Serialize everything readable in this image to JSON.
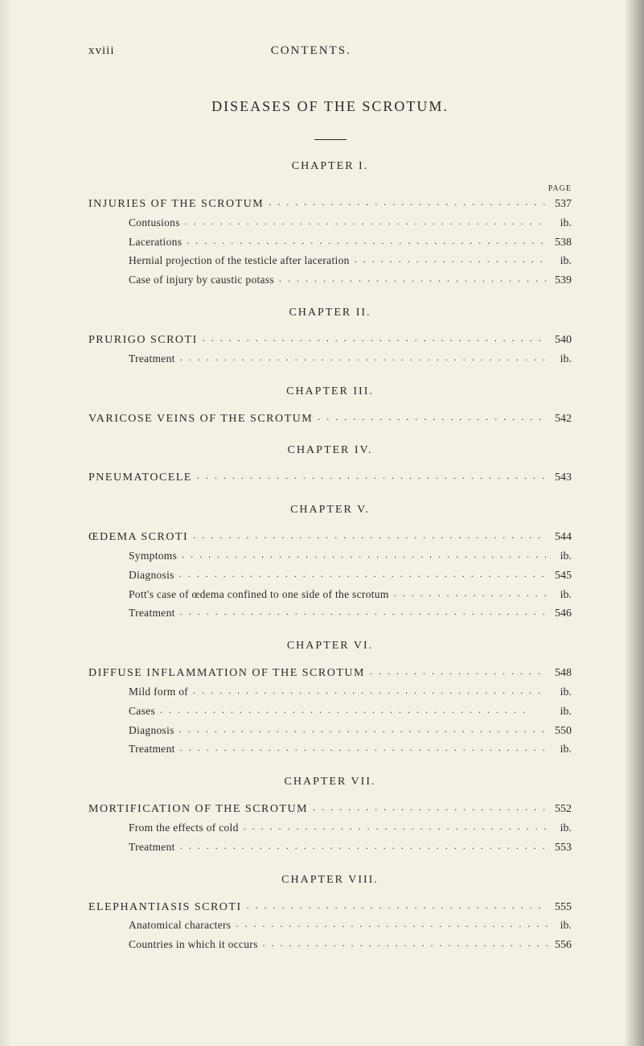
{
  "header": {
    "page_roman": "xviii",
    "title": "CONTENTS."
  },
  "section": {
    "title": "DISEASES OF THE SCROTUM."
  },
  "page_label": "PAGE",
  "chapters": [
    {
      "title": "CHAPTER I.",
      "entries": [
        {
          "label": "INJURIES OF THE SCROTUM",
          "page": "537",
          "main": true
        },
        {
          "label": "Contusions",
          "page": "ib.",
          "main": false
        },
        {
          "label": "Lacerations",
          "page": "538",
          "main": false
        },
        {
          "label": "Hernial projection of the testicle after laceration",
          "page": "ib.",
          "main": false
        },
        {
          "label": "Case of injury by caustic potass",
          "page": "539",
          "main": false
        }
      ]
    },
    {
      "title": "CHAPTER II.",
      "entries": [
        {
          "label": "PRURIGO SCROTI",
          "page": "540",
          "main": true
        },
        {
          "label": "Treatment",
          "page": "ib.",
          "main": false
        }
      ]
    },
    {
      "title": "CHAPTER III.",
      "entries": [
        {
          "label": "VARICOSE VEINS OF THE SCROTUM",
          "page": "542",
          "main": true
        }
      ]
    },
    {
      "title": "CHAPTER IV.",
      "entries": [
        {
          "label": "PNEUMATOCELE",
          "page": "543",
          "main": true
        }
      ]
    },
    {
      "title": "CHAPTER V.",
      "entries": [
        {
          "label": "ŒDEMA SCROTI",
          "page": "544",
          "main": true
        },
        {
          "label": "Symptoms",
          "page": "ib.",
          "main": false
        },
        {
          "label": "Diagnosis",
          "page": "545",
          "main": false
        },
        {
          "label": "Pott's case of œdema confined to one side of the scrotum",
          "page": "ib.",
          "main": false
        },
        {
          "label": "Treatment",
          "page": "546",
          "main": false
        }
      ]
    },
    {
      "title": "CHAPTER VI.",
      "entries": [
        {
          "label": "DIFFUSE INFLAMMATION OF THE SCROTUM",
          "page": "548",
          "main": true
        },
        {
          "label": "Mild form of",
          "page": "ib.",
          "main": false
        },
        {
          "label": "Cases",
          "page": "ib.",
          "main": false
        },
        {
          "label": "Diagnosis",
          "page": "550",
          "main": false
        },
        {
          "label": "Treatment",
          "page": "ib.",
          "main": false
        }
      ]
    },
    {
      "title": "CHAPTER VII.",
      "entries": [
        {
          "label": "MORTIFICATION OF THE SCROTUM",
          "page": "552",
          "main": true
        },
        {
          "label": "From the effects of cold",
          "page": "ib.",
          "main": false
        },
        {
          "label": "Treatment",
          "page": "553",
          "main": false
        }
      ]
    },
    {
      "title": "CHAPTER VIII.",
      "entries": [
        {
          "label": "ELEPHANTIASIS SCROTI",
          "page": "555",
          "main": true
        },
        {
          "label": "Anatomical characters",
          "page": "ib.",
          "main": false
        },
        {
          "label": "Countries in which it occurs",
          "page": "556",
          "main": false
        }
      ]
    }
  ]
}
